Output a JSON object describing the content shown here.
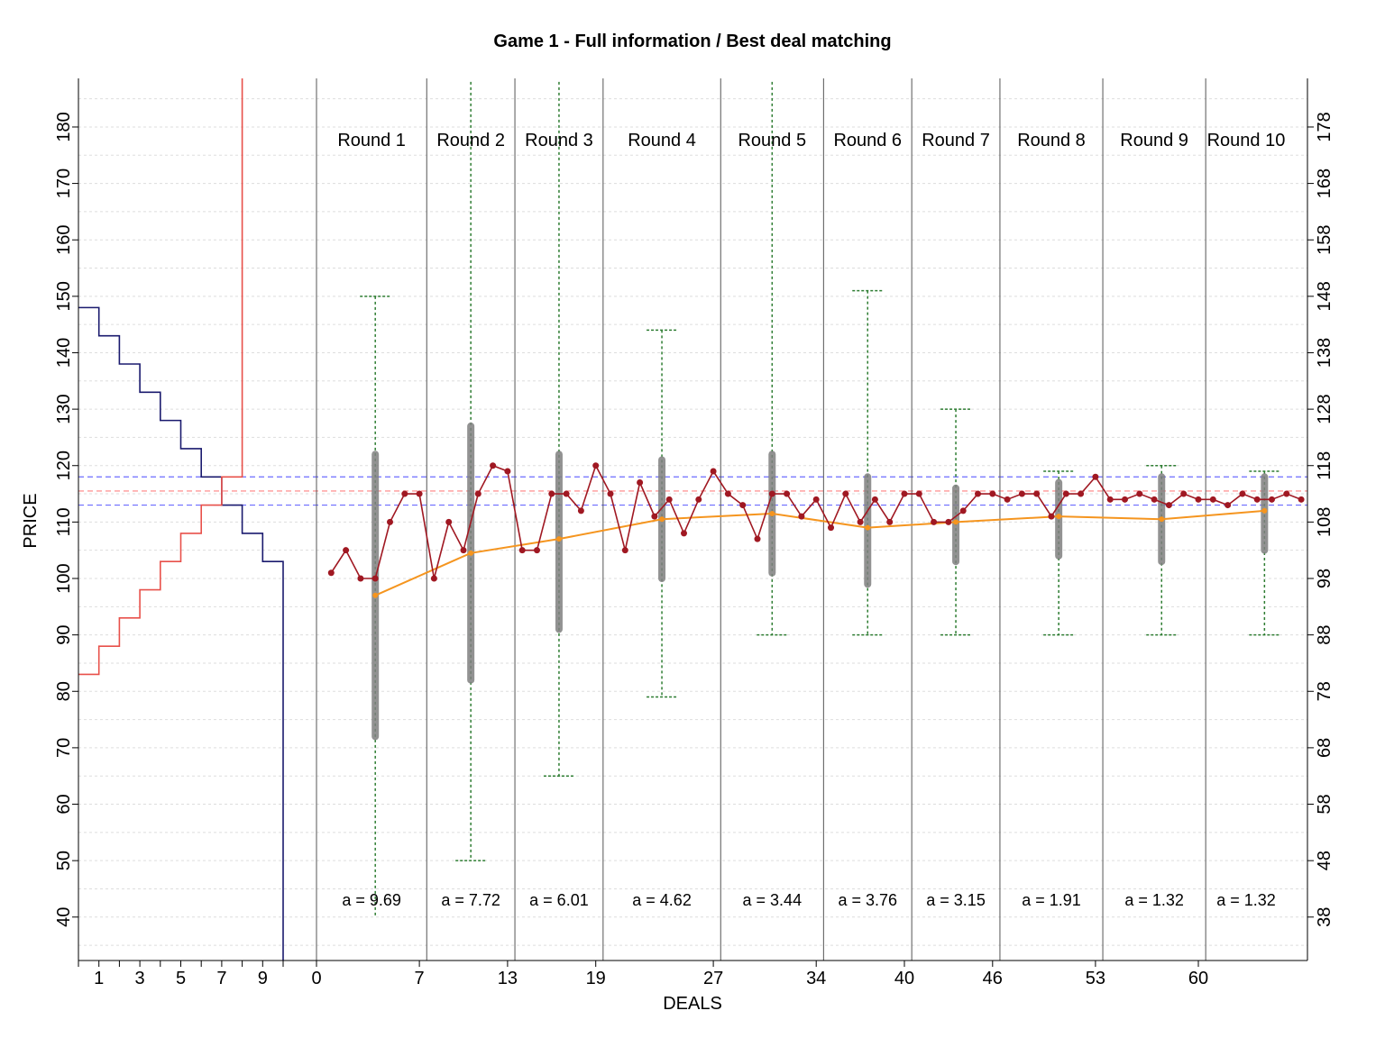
{
  "chart_data": {
    "type": "line",
    "title": "Game 1 - Full information / Best deal matching",
    "xlabel": "DEALS",
    "ylabel": "PRICE",
    "ylim": [
      32,
      188
    ],
    "left_y_ticks": [
      40,
      50,
      60,
      70,
      80,
      90,
      100,
      110,
      120,
      130,
      140,
      150,
      160,
      170,
      180
    ],
    "right_y_ticks": [
      38,
      48,
      58,
      68,
      78,
      88,
      98,
      108,
      118,
      128,
      138,
      148,
      158,
      168,
      178
    ],
    "unit_axis_ticks": [
      "1",
      "3",
      "5",
      "7",
      "9"
    ],
    "deal_axis_ticks": [
      "0",
      "7",
      "13",
      "19",
      "27",
      "34",
      "40",
      "46",
      "53",
      "60"
    ],
    "supply_demand": {
      "demand_prices": [
        148,
        143,
        138,
        133,
        128,
        123,
        118,
        113,
        108,
        103
      ],
      "supply_prices": [
        83,
        88,
        93,
        98,
        103,
        108,
        113,
        118
      ],
      "colors": {
        "demand": "#1a1a6e",
        "supply": "#e8504a"
      }
    },
    "reference_lines": [
      {
        "price": 118,
        "style": "dashed",
        "color": "#6b6bff"
      },
      {
        "price": 115.5,
        "style": "dashed",
        "color": "#ff8080"
      },
      {
        "price": 113,
        "style": "dashed",
        "color": "#6b6bff"
      }
    ],
    "round_boundaries": [
      0,
      7.5,
      13.5,
      19.5,
      27.5,
      34.5,
      40.5,
      46.5,
      53.5,
      60.5
    ],
    "rounds": [
      {
        "label": "Round  1",
        "a_label": "a =  9.69",
        "whisker": [
          40,
          150
        ],
        "box": [
          72,
          122
        ],
        "mean": 97,
        "center": 4
      },
      {
        "label": "Round  2",
        "a_label": "a =  7.72",
        "whisker": [
          50,
          188
        ],
        "box": [
          82,
          127
        ],
        "mean": 104.5,
        "center": 10.5
      },
      {
        "label": "Round  3",
        "a_label": "a =  6.01",
        "whisker": [
          65,
          188
        ],
        "box": [
          91,
          122
        ],
        "mean": 107,
        "center": 16.5
      },
      {
        "label": "Round  4",
        "a_label": "a =  4.62",
        "whisker": [
          79,
          144
        ],
        "box": [
          100,
          121
        ],
        "mean": 110.5,
        "center": 23.5
      },
      {
        "label": "Round  5",
        "a_label": "a =  3.44",
        "whisker": [
          90,
          188
        ],
        "box": [
          101,
          122
        ],
        "mean": 111.5,
        "center": 31
      },
      {
        "label": "Round  6",
        "a_label": "a =  3.76",
        "whisker": [
          90,
          151
        ],
        "box": [
          99,
          118
        ],
        "mean": 109,
        "center": 37.5
      },
      {
        "label": "Round  7",
        "a_label": "a =  3.15",
        "whisker": [
          90,
          130
        ],
        "box": [
          103,
          116
        ],
        "mean": 110,
        "center": 43.5
      },
      {
        "label": "Round  8",
        "a_label": "a =  1.91",
        "whisker": [
          90,
          119
        ],
        "box": [
          104,
          117
        ],
        "mean": 111,
        "center": 50.5
      },
      {
        "label": "Round  9",
        "a_label": "a =  1.32",
        "whisker": [
          90,
          120
        ],
        "box": [
          103,
          118
        ],
        "mean": 110.5,
        "center": 57.5
      },
      {
        "label": "Round  10",
        "a_label": "a =  1.32",
        "whisker": [
          90,
          119
        ],
        "box": [
          105,
          118
        ],
        "mean": 112,
        "center": 64.5
      }
    ],
    "deal_prices": [
      [
        1,
        101
      ],
      [
        2,
        105
      ],
      [
        3,
        100
      ],
      [
        4,
        100
      ],
      [
        5,
        110
      ],
      [
        6,
        115
      ],
      [
        7,
        115
      ],
      [
        8,
        100
      ],
      [
        9,
        110
      ],
      [
        10,
        105
      ],
      [
        11,
        115
      ],
      [
        12,
        120
      ],
      [
        13,
        119
      ],
      [
        14,
        105
      ],
      [
        15,
        105
      ],
      [
        16,
        115
      ],
      [
        17,
        115
      ],
      [
        18,
        112
      ],
      [
        19,
        120
      ],
      [
        20,
        115
      ],
      [
        21,
        105
      ],
      [
        22,
        117
      ],
      [
        23,
        111
      ],
      [
        24,
        114
      ],
      [
        25,
        108
      ],
      [
        26,
        114
      ],
      [
        27,
        119
      ],
      [
        28,
        115
      ],
      [
        29,
        113
      ],
      [
        30,
        107
      ],
      [
        31,
        115
      ],
      [
        32,
        115
      ],
      [
        33,
        111
      ],
      [
        34,
        114
      ],
      [
        35,
        109
      ],
      [
        36,
        115
      ],
      [
        37,
        110
      ],
      [
        38,
        114
      ],
      [
        39,
        110
      ],
      [
        40,
        115
      ],
      [
        41,
        115
      ],
      [
        42,
        110
      ],
      [
        43,
        110
      ],
      [
        44,
        112
      ],
      [
        45,
        115
      ],
      [
        46,
        115
      ],
      [
        47,
        114
      ],
      [
        48,
        115
      ],
      [
        49,
        115
      ],
      [
        50,
        111
      ],
      [
        51,
        115
      ],
      [
        52,
        115
      ],
      [
        53,
        118
      ],
      [
        54,
        114
      ],
      [
        55,
        114
      ],
      [
        56,
        115
      ],
      [
        57,
        114
      ],
      [
        58,
        113
      ],
      [
        59,
        115
      ],
      [
        60,
        114
      ],
      [
        61,
        114
      ],
      [
        62,
        113
      ],
      [
        63,
        115
      ],
      [
        64,
        114
      ],
      [
        65,
        114
      ],
      [
        66,
        115
      ],
      [
        67,
        114
      ]
    ],
    "colors": {
      "deals": "#a01822",
      "mean_line": "#f5951f",
      "whisker": "#2e7d32",
      "box": "#808080",
      "round_divider": "#555555",
      "grid": "#dddddd"
    },
    "grid": true
  }
}
